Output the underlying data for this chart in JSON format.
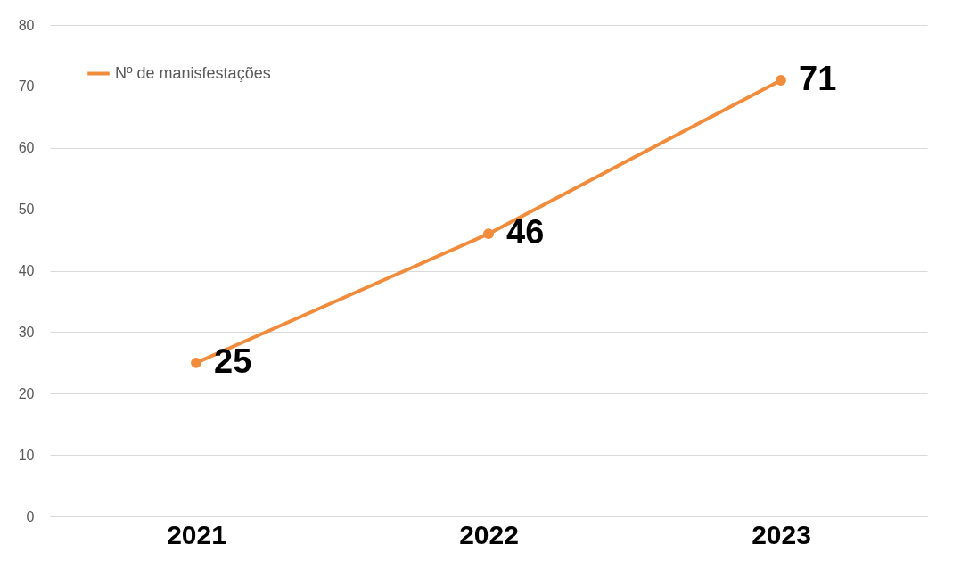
{
  "chart_data": {
    "type": "line",
    "categories": [
      "2021",
      "2022",
      "2023"
    ],
    "series": [
      {
        "name": "Nº de manisfestações",
        "color": "#f08c3c",
        "values": [
          25,
          46,
          71
        ]
      }
    ],
    "ylim": [
      0,
      80
    ],
    "yticks": [
      0,
      10,
      20,
      30,
      40,
      50,
      60,
      70,
      80
    ],
    "grid": "y",
    "legend": "top left",
    "marker": "circle",
    "line_style": "solid",
    "data_labels": true
  }
}
